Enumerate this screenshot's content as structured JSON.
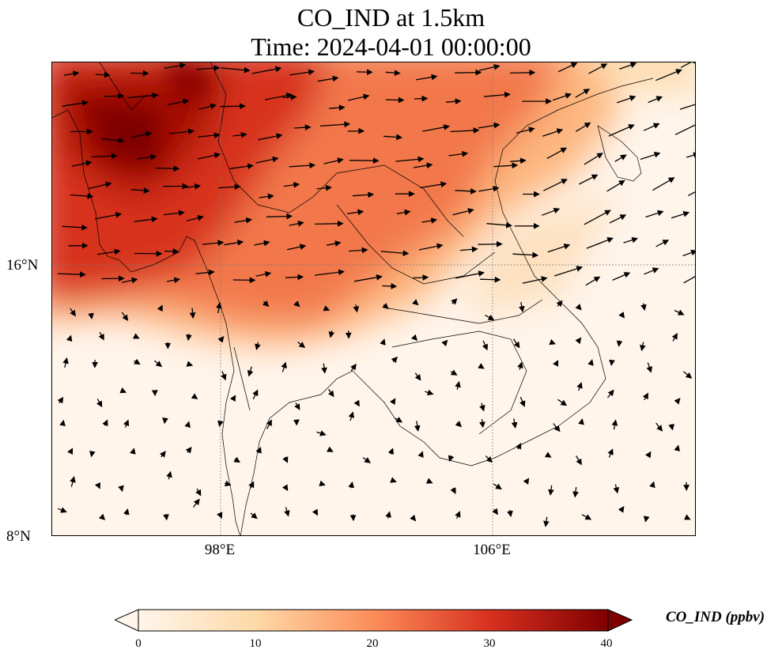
{
  "title": {
    "line1": "CO_IND at 1.5km",
    "line2": "Time: 2024-04-01 00:00:00"
  },
  "map": {
    "lat_ticks": [
      {
        "label": "16°N",
        "value": 16
      },
      {
        "label": "8°N",
        "value": 8
      }
    ],
    "lon_ticks": [
      {
        "label": "98°E",
        "value": 98
      },
      {
        "label": "106°E",
        "value": 106
      }
    ],
    "extent": {
      "lon_min": 93,
      "lon_max": 112,
      "lat_min": 8,
      "lat_max": 22
    },
    "colormap": [
      "#fff5eb",
      "#fdd9a8",
      "#fc8d59",
      "#d7301f",
      "#7f0000"
    ]
  },
  "colorbar": {
    "label": "CO_IND (ppbv)",
    "min": 0,
    "max": 40,
    "ticks": [
      "0",
      "10",
      "20",
      "30",
      "40"
    ]
  },
  "chart_data": {
    "type": "heatmap",
    "title": "CO_IND at 1.5km",
    "subtitle": "Time: 2024-04-01 00:00:00",
    "variable": "CO_IND",
    "units": "ppbv",
    "xlim": [
      93,
      112
    ],
    "ylim": [
      8,
      22
    ],
    "value_range": [
      0,
      40
    ]
  }
}
